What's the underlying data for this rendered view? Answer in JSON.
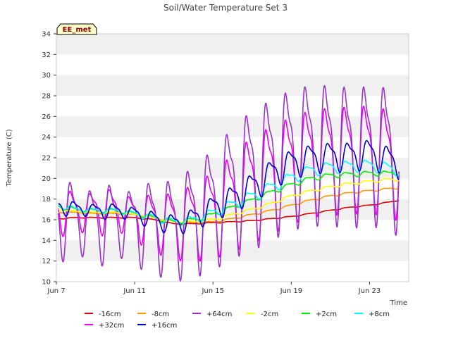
{
  "chart_data": {
    "type": "line",
    "title": "Soil/Water Temperature Set 3",
    "xlabel": "Time",
    "ylabel": "Temperature (C)",
    "ylim": [
      10,
      34
    ],
    "xlim": [
      0,
      18
    ],
    "yticks": [
      10,
      12,
      14,
      16,
      18,
      20,
      22,
      24,
      26,
      28,
      30,
      32,
      34
    ],
    "xticks": [
      {
        "x": 0,
        "label": "Jun 7"
      },
      {
        "x": 4,
        "label": "Jun 11"
      },
      {
        "x": 8,
        "label": "Jun 15"
      },
      {
        "x": 12,
        "label": "Jun 19"
      },
      {
        "x": 16,
        "label": "Jun 23"
      }
    ],
    "x_unit": "days since Jun 7",
    "grid": "horizontal alternating bands",
    "legend_position": "bottom",
    "badge": "EE_met",
    "series": [
      {
        "name": "-16cm",
        "color": "#dd0000",
        "start": 0.1,
        "end": 17.5,
        "points": [
          [
            0.1,
            16.1
          ],
          [
            1,
            16.2
          ],
          [
            2,
            16.2
          ],
          [
            3,
            16.2
          ],
          [
            4,
            16.2
          ],
          [
            5,
            16.0
          ],
          [
            6,
            15.6
          ],
          [
            7,
            15.6
          ],
          [
            8,
            15.7
          ],
          [
            9,
            15.8
          ],
          [
            10,
            15.9
          ],
          [
            11,
            16.1
          ],
          [
            12,
            16.3
          ],
          [
            13,
            16.6
          ],
          [
            14,
            16.9
          ],
          [
            15,
            17.2
          ],
          [
            16,
            17.4
          ],
          [
            17,
            17.7
          ],
          [
            17.5,
            17.9
          ]
        ],
        "amp": [
          0.05,
          0.05
        ]
      },
      {
        "name": "+32cm",
        "color": "#ee00ee",
        "start": 0.1,
        "end": 17.5,
        "points": [
          [
            0.1,
            17.0
          ],
          [
            1,
            16.8
          ],
          [
            2,
            17.0
          ],
          [
            3,
            17.0
          ],
          [
            4,
            16.5
          ],
          [
            5,
            16.0
          ],
          [
            6,
            15.8
          ],
          [
            7,
            16.2
          ],
          [
            8,
            17.0
          ],
          [
            9,
            18.3
          ],
          [
            10,
            19.6
          ],
          [
            11,
            20.6
          ],
          [
            12,
            21.5
          ],
          [
            13,
            22.2
          ],
          [
            14,
            22.4
          ],
          [
            15,
            22.5
          ],
          [
            16,
            22.6
          ],
          [
            17,
            22.2
          ],
          [
            17.5,
            21.8
          ]
        ],
        "amp": [
          2.4,
          5.5
        ],
        "phase": 0.55
      },
      {
        "name": "-8cm",
        "color": "#ff9900",
        "start": 0.1,
        "end": 17.5,
        "points": [
          [
            0.1,
            16.7
          ],
          [
            1,
            16.7
          ],
          [
            2,
            16.6
          ],
          [
            3,
            16.6
          ],
          [
            4,
            16.5
          ],
          [
            5,
            16.2
          ],
          [
            6,
            15.8
          ],
          [
            7,
            15.7
          ],
          [
            8,
            15.8
          ],
          [
            9,
            16.1
          ],
          [
            10,
            16.5
          ],
          [
            11,
            16.9
          ],
          [
            12,
            17.4
          ],
          [
            13,
            17.9
          ],
          [
            14,
            18.3
          ],
          [
            15,
            18.6
          ],
          [
            16,
            18.8
          ],
          [
            17,
            19.0
          ],
          [
            17.5,
            19.1
          ]
        ],
        "amp": [
          0.05,
          0.1
        ]
      },
      {
        "name": "+64cm",
        "color": "#9933cc",
        "start": 0.1,
        "end": 17.5,
        "points": [
          [
            0.1,
            16.5
          ],
          [
            1,
            16.2
          ],
          [
            2,
            16.0
          ],
          [
            3,
            16.0
          ],
          [
            4,
            16.0
          ],
          [
            5,
            15.8
          ],
          [
            6,
            15.6
          ],
          [
            7,
            16.5
          ],
          [
            8,
            17.8
          ],
          [
            9,
            19.5
          ],
          [
            10,
            20.8
          ],
          [
            11,
            21.8
          ],
          [
            12,
            22.8
          ],
          [
            13,
            23.2
          ],
          [
            14,
            23.2
          ],
          [
            15,
            23.0
          ],
          [
            16,
            23.1
          ],
          [
            17,
            23.0
          ],
          [
            17.5,
            22.0
          ]
        ],
        "amp": [
          4.2,
          7.2
        ],
        "phase": 0.55
      },
      {
        "name": "-2cm",
        "color": "#ffff00",
        "start": 0.1,
        "end": 17.5,
        "points": [
          [
            0.1,
            17.0
          ],
          [
            1,
            16.8
          ],
          [
            2,
            16.7
          ],
          [
            3,
            16.7
          ],
          [
            4,
            16.5
          ],
          [
            5,
            16.2
          ],
          [
            6,
            15.8
          ],
          [
            7,
            15.8
          ],
          [
            8,
            16.0
          ],
          [
            9,
            16.5
          ],
          [
            10,
            17.0
          ],
          [
            11,
            17.6
          ],
          [
            12,
            18.3
          ],
          [
            13,
            18.8
          ],
          [
            14,
            19.2
          ],
          [
            15,
            19.5
          ],
          [
            16,
            19.7
          ],
          [
            17,
            19.9
          ],
          [
            17.5,
            19.9
          ]
        ],
        "amp": [
          0.1,
          0.15
        ]
      },
      {
        "name": "+2cm",
        "color": "#00ee00",
        "start": 0.1,
        "end": 17.5,
        "points": [
          [
            0.1,
            17.3
          ],
          [
            1,
            17.0
          ],
          [
            2,
            16.9
          ],
          [
            3,
            16.9
          ],
          [
            4,
            16.6
          ],
          [
            5,
            16.2
          ],
          [
            6,
            15.8
          ],
          [
            7,
            16.0
          ],
          [
            8,
            16.5
          ],
          [
            9,
            17.2
          ],
          [
            10,
            17.9
          ],
          [
            11,
            18.7
          ],
          [
            12,
            19.4
          ],
          [
            13,
            20.0
          ],
          [
            14,
            20.3
          ],
          [
            15,
            20.4
          ],
          [
            16,
            20.5
          ],
          [
            17,
            20.5
          ],
          [
            17.5,
            20.6
          ]
        ],
        "amp": [
          0.2,
          0.25
        ]
      },
      {
        "name": "+8cm",
        "color": "#00ffff",
        "start": 0.1,
        "end": 17.5,
        "points": [
          [
            0.1,
            17.4
          ],
          [
            1,
            17.0
          ],
          [
            2,
            16.9
          ],
          [
            3,
            16.9
          ],
          [
            4,
            16.6
          ],
          [
            5,
            16.2
          ],
          [
            6,
            15.8
          ],
          [
            7,
            16.0
          ],
          [
            8,
            16.7
          ],
          [
            9,
            17.5
          ],
          [
            10,
            18.3
          ],
          [
            11,
            19.2
          ],
          [
            12,
            20.1
          ],
          [
            13,
            20.8
          ],
          [
            14,
            21.1
          ],
          [
            15,
            21.2
          ],
          [
            16,
            21.3
          ],
          [
            17,
            21.0
          ],
          [
            17.5,
            20.8
          ]
        ],
        "amp": [
          0.3,
          0.6
        ],
        "phase": 0.6
      },
      {
        "name": "+16cm",
        "color": "#0000cc",
        "start": 0.1,
        "end": 17.5,
        "points": [
          [
            0.1,
            17.3
          ],
          [
            1,
            17.1
          ],
          [
            2,
            16.9
          ],
          [
            3,
            16.9
          ],
          [
            4,
            16.6
          ],
          [
            5,
            16.0
          ],
          [
            6,
            15.6
          ],
          [
            7,
            16.1
          ],
          [
            8,
            17.2
          ],
          [
            9,
            18.1
          ],
          [
            10,
            19.2
          ],
          [
            11,
            20.5
          ],
          [
            12,
            21.5
          ],
          [
            13,
            22.0
          ],
          [
            14,
            22.2
          ],
          [
            15,
            22.2
          ],
          [
            16,
            22.5
          ],
          [
            17,
            21.8
          ],
          [
            17.5,
            21.5
          ]
        ],
        "amp": [
          0.8,
          1.5
        ],
        "phase": 0.7
      }
    ]
  }
}
